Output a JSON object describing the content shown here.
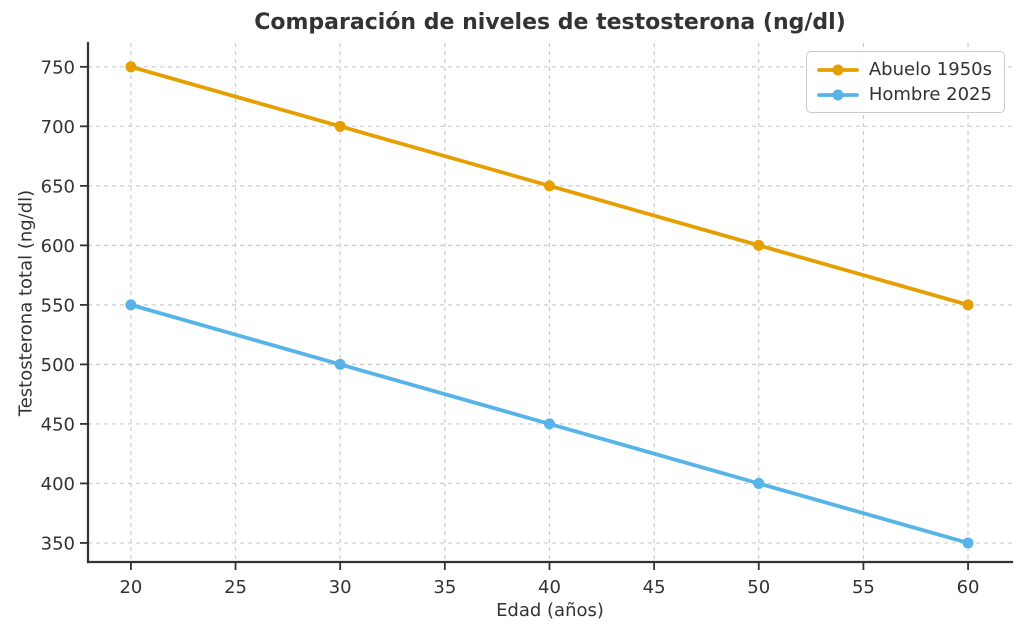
{
  "chart_data": {
    "type": "line",
    "title": "Comparación de niveles de testosterona (ng/dl)",
    "xlabel": "Edad (años)",
    "ylabel": "Testosterona total (ng/dl)",
    "x": [
      20,
      30,
      40,
      50,
      60
    ],
    "series": [
      {
        "name": "Abuelo 1950s",
        "color": "#E69F00",
        "values": [
          750,
          700,
          650,
          600,
          550
        ]
      },
      {
        "name": "Hombre 2025",
        "color": "#56B4E9",
        "values": [
          550,
          500,
          450,
          400,
          350
        ]
      }
    ],
    "xticks": [
      20,
      25,
      30,
      35,
      40,
      45,
      50,
      55,
      60
    ],
    "yticks": [
      350,
      400,
      450,
      500,
      550,
      600,
      650,
      700,
      750
    ],
    "xlim": [
      17.95,
      62.1
    ],
    "ylim": [
      334,
      770
    ],
    "grid": true,
    "legend_position": "upper right",
    "colors": {
      "axis": "#333333",
      "grid": "#cccccc",
      "text": "#333333",
      "background": "#ffffff"
    }
  }
}
